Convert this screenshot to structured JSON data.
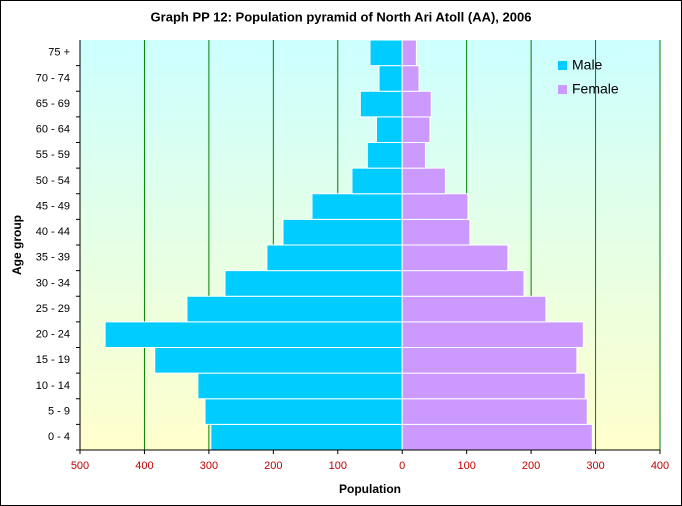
{
  "chart_data": {
    "type": "pyramid",
    "title": "Graph PP 12: Population pyramid of North Ari Atoll (AA), 2006",
    "x_label": "Population",
    "y_label": "Age group",
    "categories": [
      "0 - 4",
      "5 - 9",
      "10 - 14",
      "15 - 19",
      "20 - 24",
      "25 - 29",
      "30 - 34",
      "35 - 39",
      "40 - 44",
      "45 - 49",
      "50 - 54",
      "55 - 59",
      "60 - 64",
      "65 - 69",
      "70 - 74",
      "75 +"
    ],
    "series": [
      {
        "name": "Male",
        "color": "#00ccff",
        "values": [
          -297,
          -306,
          -317,
          -384,
          -461,
          -334,
          -275,
          -210,
          -185,
          -140,
          -78,
          -54,
          -40,
          -65,
          -36,
          -50
        ]
      },
      {
        "name": "Female",
        "color": "#cc99ff",
        "values": [
          295,
          287,
          284,
          271,
          281,
          223,
          189,
          164,
          105,
          102,
          67,
          36,
          43,
          45,
          26,
          22
        ]
      }
    ],
    "xlim": [
      -500,
      400
    ],
    "xticks": [
      {
        "value": -500,
        "label": "500"
      },
      {
        "value": -400,
        "label": "400"
      },
      {
        "value": -300,
        "label": "300"
      },
      {
        "value": -200,
        "label": "200"
      },
      {
        "value": -100,
        "label": "100"
      },
      0,
      100,
      200,
      300,
      400
    ],
    "grid": true,
    "legend": "top-right"
  }
}
